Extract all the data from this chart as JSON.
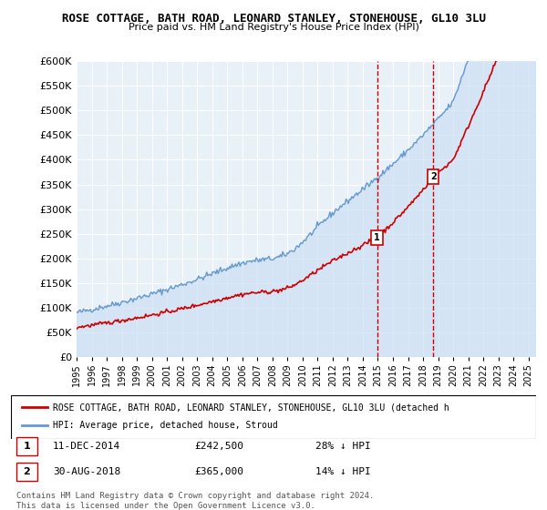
{
  "title": "ROSE COTTAGE, BATH ROAD, LEONARD STANLEY, STONEHOUSE, GL10 3LU",
  "subtitle": "Price paid vs. HM Land Registry's House Price Index (HPI)",
  "legend_line1": "ROSE COTTAGE, BATH ROAD, LEONARD STANLEY, STONEHOUSE, GL10 3LU (detached h",
  "legend_line2": "HPI: Average price, detached house, Stroud",
  "footnote": "Contains HM Land Registry data © Crown copyright and database right 2024.\nThis data is licensed under the Open Government Licence v3.0.",
  "transaction1_label": "1",
  "transaction1_date": "11-DEC-2014",
  "transaction1_price": "£242,500",
  "transaction1_hpi": "28% ↓ HPI",
  "transaction2_label": "2",
  "transaction2_date": "30-AUG-2018",
  "transaction2_price": "£365,000",
  "transaction2_hpi": "14% ↓ HPI",
  "transaction1_x": 2014.95,
  "transaction1_y": 242500,
  "transaction2_x": 2018.67,
  "transaction2_y": 365000,
  "ylim": [
    0,
    600000
  ],
  "xlim": [
    1995,
    2025.5
  ],
  "red_color": "#cc0000",
  "blue_color": "#6699cc",
  "blue_fill_color": "#cce0f5",
  "bg_plot_color": "#e8f0f8",
  "grid_color": "#ffffff"
}
